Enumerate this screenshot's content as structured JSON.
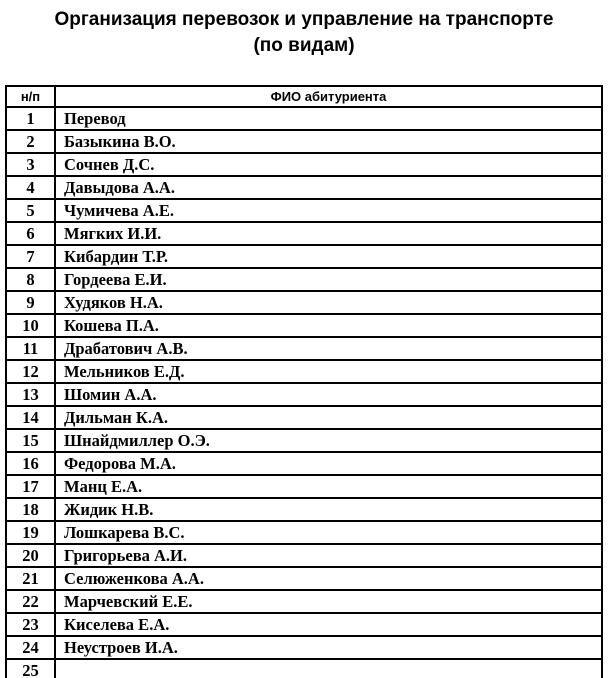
{
  "title": {
    "line1": "Организация перевозок и управление на транспорте",
    "line2": "(по видам)"
  },
  "table": {
    "headers": {
      "num": "н/п",
      "name": "ФИО абитуриента"
    },
    "rows": [
      {
        "num": "1",
        "name": "Перевод"
      },
      {
        "num": "2",
        "name": "Базыкина В.О."
      },
      {
        "num": "3",
        "name": "Сочнев Д.С."
      },
      {
        "num": "4",
        "name": "Давыдова А.А."
      },
      {
        "num": "5",
        "name": "Чумичева А.Е."
      },
      {
        "num": "6",
        "name": "Мягких И.И."
      },
      {
        "num": "7",
        "name": "Кибардин Т.Р."
      },
      {
        "num": "8",
        "name": "Гордеева Е.И."
      },
      {
        "num": "9",
        "name": "Худяков Н.А."
      },
      {
        "num": "10",
        "name": "Кошева П.А."
      },
      {
        "num": "11",
        "name": "Драбатович А.В."
      },
      {
        "num": "12",
        "name": "Мельников Е.Д."
      },
      {
        "num": "13",
        "name": "Шомин А.А."
      },
      {
        "num": "14",
        "name": "Дильман К.А."
      },
      {
        "num": "15",
        "name": "Шнайдмиллер О.Э."
      },
      {
        "num": "16",
        "name": "Федорова М.А."
      },
      {
        "num": "17",
        "name": "Манц Е.А."
      },
      {
        "num": "18",
        "name": "Жидик Н.В."
      },
      {
        "num": "19",
        "name": "Лошкарева В.С."
      },
      {
        "num": "20",
        "name": "Григорьева А.И."
      },
      {
        "num": "21",
        "name": "Селюженкова А.А."
      },
      {
        "num": "22",
        "name": "Марчевский Е.Е."
      },
      {
        "num": "23",
        "name": "Киселева Е.А."
      },
      {
        "num": "24",
        "name": "Неустроев И.А."
      },
      {
        "num": "25",
        "name": ""
      }
    ]
  },
  "colors": {
    "text": "#000000",
    "border": "#000000",
    "background": "#ffffff"
  }
}
